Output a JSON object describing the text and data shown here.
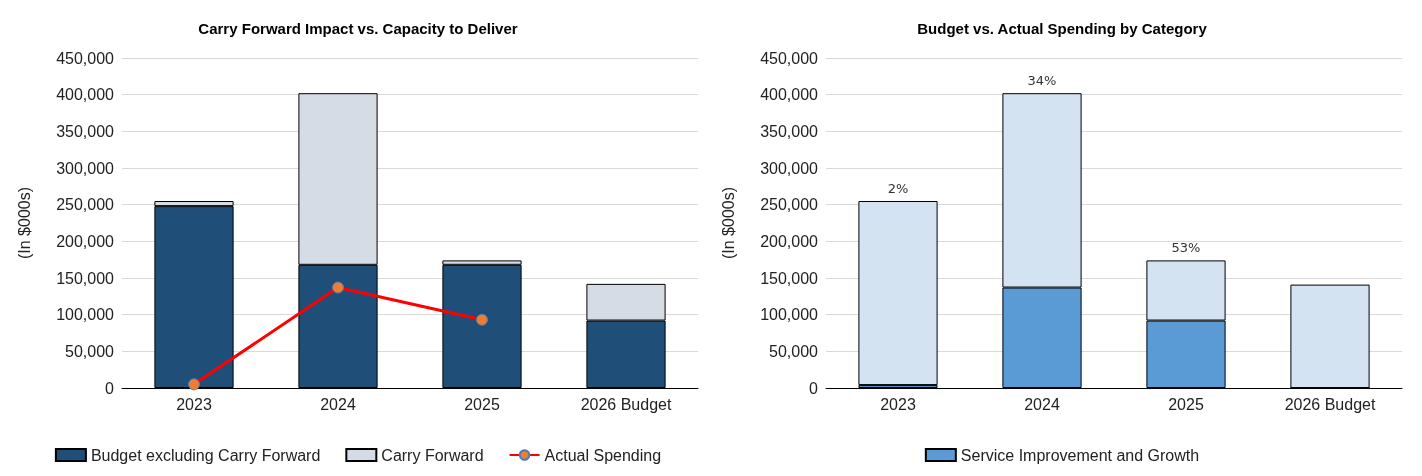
{
  "chart_data": [
    {
      "type": "bar",
      "title": "Carry Forward Impact vs. Capacity to Deliver",
      "ylabel": "(In $000s)",
      "categories": [
        "2023",
        "2024",
        "2025",
        "2026 Budget"
      ],
      "stacked": true,
      "series": [
        {
          "name": "Budget excluding Carry Forward",
          "color": "#1f4e79",
          "values": [
            248000,
            168000,
            168000,
            92000
          ]
        },
        {
          "name": "Carry Forward",
          "color": "#d6dce5",
          "values": [
            7000,
            234000,
            6000,
            50000
          ]
        },
        {
          "name": "Actual Spending",
          "type": "line",
          "color": "#ff0000",
          "values": [
            5000,
            137000,
            93000,
            null
          ]
        }
      ],
      "ylim": [
        0,
        450000
      ],
      "yticks": [
        0,
        {
          "value": 50000,
          "label": "50,000"
        },
        {
          "value": 100000,
          "label": "100,000"
        },
        {
          "value": 150000,
          "label": "150,000"
        },
        {
          "value": 200000,
          "label": "200,000"
        },
        {
          "value": 250000,
          "label": "250,000"
        },
        {
          "value": 300000,
          "label": "300,000"
        },
        {
          "value": 350000,
          "label": "350,000"
        },
        {
          "value": 400000,
          "label": "400,000"
        },
        {
          "value": 450000,
          "label": "450,000"
        }
      ],
      "grid": "y",
      "legend": "bottom",
      "marker": "circle",
      "line_style": "solid"
    },
    {
      "type": "bar",
      "title": "Budget vs. Actual Spending by Category",
      "ylabel": "(In $000s)",
      "categories": [
        "2023",
        "2024",
        "2025",
        "2026 Budget"
      ],
      "stacked": true,
      "series": [
        {
          "name": "Service Improvement and Growth",
          "color": "#5b9bd5",
          "values": [
            4000,
            137000,
            92000,
            0
          ]
        },
        {
          "color": "#d4e3f2",
          "values": [
            251000,
            265000,
            82000,
            141000
          ]
        }
      ],
      "annotations": [
        {
          "text": "2%",
          "x": "2023",
          "y": 255000
        },
        {
          "text": "34%",
          "x": "2024",
          "y": 402000
        },
        {
          "text": "53%",
          "x": "2025",
          "y": 174000
        }
      ],
      "ylim": [
        0,
        450000
      ],
      "yticks": [
        0,
        {
          "value": 50000,
          "label": "50,000"
        },
        {
          "value": 100000,
          "label": "100,000"
        },
        {
          "value": 150000,
          "label": "150,000"
        },
        {
          "value": 200000,
          "label": "200,000"
        },
        {
          "value": 250000,
          "label": "250,000"
        },
        {
          "value": 300000,
          "label": "300,000"
        },
        {
          "value": 350000,
          "label": "350,000"
        },
        {
          "value": 400000,
          "label": "400,000"
        },
        {
          "value": 450000,
          "label": "450,000"
        }
      ],
      "grid": "y",
      "legend": "bottom"
    }
  ]
}
